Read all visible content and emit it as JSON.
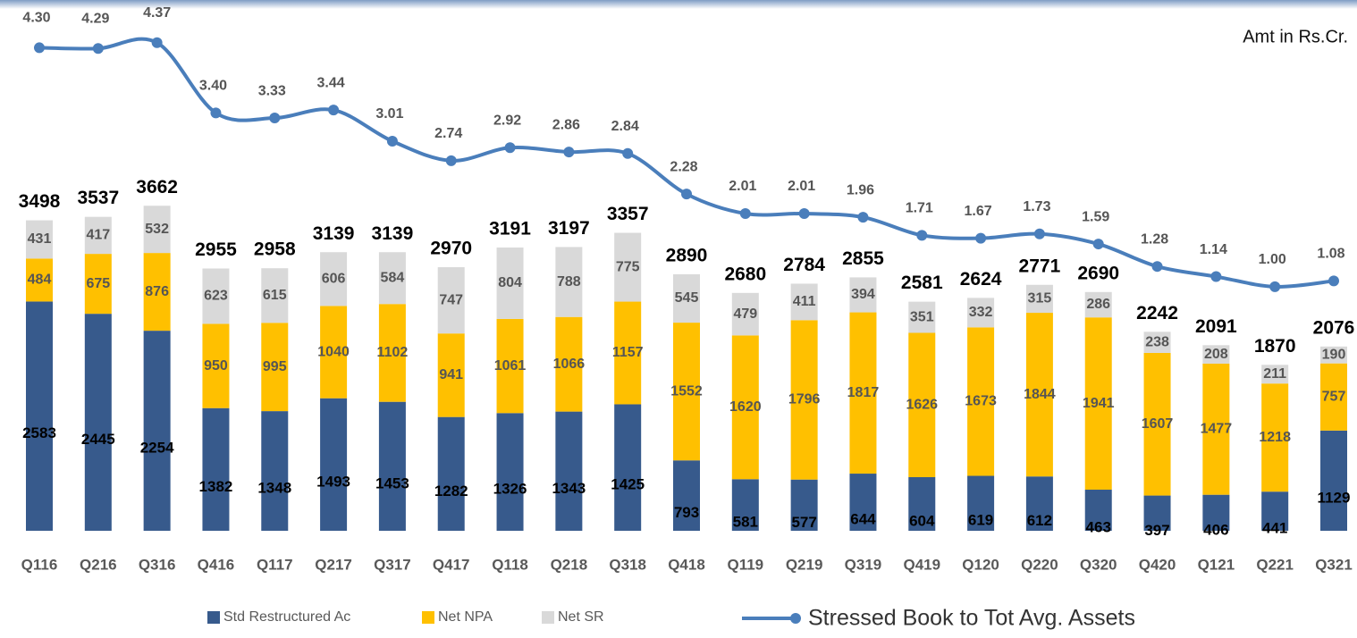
{
  "chart_data": {
    "type": "stacked-bar-line",
    "note": "Amt in Rs.Cr.",
    "categories": [
      "Q116",
      "Q216",
      "Q316",
      "Q416",
      "Q117",
      "Q217",
      "Q317",
      "Q417",
      "Q118",
      "Q218",
      "Q318",
      "Q418",
      "Q119",
      "Q219",
      "Q319",
      "Q419",
      "Q120",
      "Q220",
      "Q320",
      "Q420",
      "Q121",
      "Q221",
      "Q321"
    ],
    "series": [
      {
        "name": "Std Restructured Ac",
        "color": "#375a8c",
        "values": [
          2583,
          2445,
          2254,
          1382,
          1348,
          1493,
          1453,
          1282,
          1326,
          1343,
          1425,
          793,
          581,
          577,
          644,
          604,
          619,
          612,
          463,
          397,
          406,
          441,
          1129
        ]
      },
      {
        "name": "Net NPA",
        "color": "#ffc000",
        "values": [
          484,
          675,
          876,
          950,
          995,
          1040,
          1102,
          941,
          1061,
          1066,
          1157,
          1552,
          1620,
          1796,
          1817,
          1626,
          1673,
          1844,
          1941,
          1607,
          1477,
          1218,
          757
        ]
      },
      {
        "name": "Net SR",
        "color": "#d9d9d9",
        "values": [
          431,
          417,
          532,
          623,
          615,
          606,
          584,
          747,
          804,
          788,
          775,
          545,
          479,
          411,
          394,
          351,
          332,
          315,
          286,
          238,
          208,
          211,
          190
        ]
      },
      {
        "name": "Stressed Book to Tot Avg. Assets",
        "color": "#4a7ebb",
        "axis": "y2",
        "values": [
          4.3,
          4.29,
          4.37,
          3.4,
          3.33,
          3.44,
          3.01,
          2.74,
          2.92,
          2.86,
          2.84,
          2.28,
          2.01,
          2.01,
          1.96,
          1.71,
          1.67,
          1.73,
          1.59,
          1.28,
          1.14,
          1.0,
          1.08
        ],
        "value_labels": [
          "4.30",
          "4.29",
          "4.37",
          "3.40",
          "3.33",
          "3.44",
          "3.01",
          "2.74",
          "2.92",
          "2.86",
          "2.84",
          "2.28",
          "2.01",
          "2.01",
          "1.96",
          "1.71",
          "1.67",
          "1.73",
          "1.59",
          "1.28",
          "1.14",
          "1.00",
          "1.08"
        ]
      }
    ],
    "totals": [
      3498,
      3537,
      3662,
      2955,
      2958,
      3139,
      3139,
      2970,
      3191,
      3197,
      3357,
      2890,
      2680,
      2784,
      2855,
      2581,
      2624,
      2771,
      2690,
      2242,
      2091,
      1870,
      2076
    ],
    "ylim": [
      0,
      5940
    ],
    "y2lim": [
      -2.37,
      4.91
    ]
  }
}
